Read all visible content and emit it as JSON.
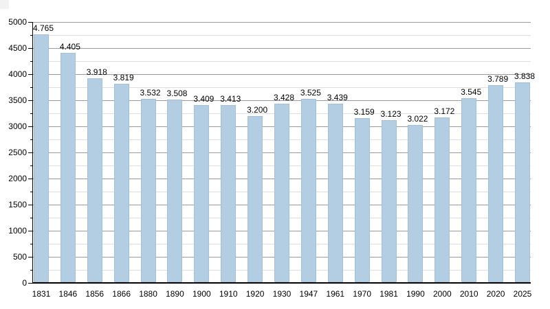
{
  "chart_data": {
    "type": "bar",
    "title": "",
    "xlabel": "",
    "ylabel": "",
    "categories": [
      "1831",
      "1846",
      "1856",
      "1866",
      "1880",
      "1890",
      "1900",
      "1910",
      "1920",
      "1930",
      "1947",
      "1961",
      "1970",
      "1981",
      "1990",
      "2000",
      "2010",
      "2020",
      "2025"
    ],
    "values": [
      4765,
      4405,
      3918,
      3819,
      3532,
      3508,
      3409,
      3413,
      3200,
      3428,
      3525,
      3439,
      3159,
      3123,
      3022,
      3172,
      3545,
      3789,
      3838
    ],
    "bar_labels": [
      "4.765",
      "4.405",
      "3.918",
      "3.819",
      "3.532",
      "3.508",
      "3.409",
      "3.413",
      "3.200",
      "3.428",
      "3.525",
      "3.439",
      "3.159",
      "3.123",
      "3.022",
      "3.172",
      "3.545",
      "3.789",
      "3.838"
    ],
    "ylim": [
      0,
      5000
    ],
    "ytick_step": 500,
    "yminor_step": 250,
    "ytick_labels": [
      "0",
      "500",
      "1000",
      "1500",
      "2000",
      "2500",
      "3000",
      "3500",
      "4000",
      "4500",
      "5000"
    ],
    "grid": "horizontal, major and minor lines",
    "legend": "none",
    "colors": {
      "bar_fill": "#b3cde3",
      "bar_border": "#a3c0da",
      "grid_major": "#9a9a9a",
      "grid_minor": "#dedede",
      "axis": "#000000",
      "text": "#000000",
      "background": "#ffffff",
      "corner_artifact": "#f2f2f2"
    }
  }
}
